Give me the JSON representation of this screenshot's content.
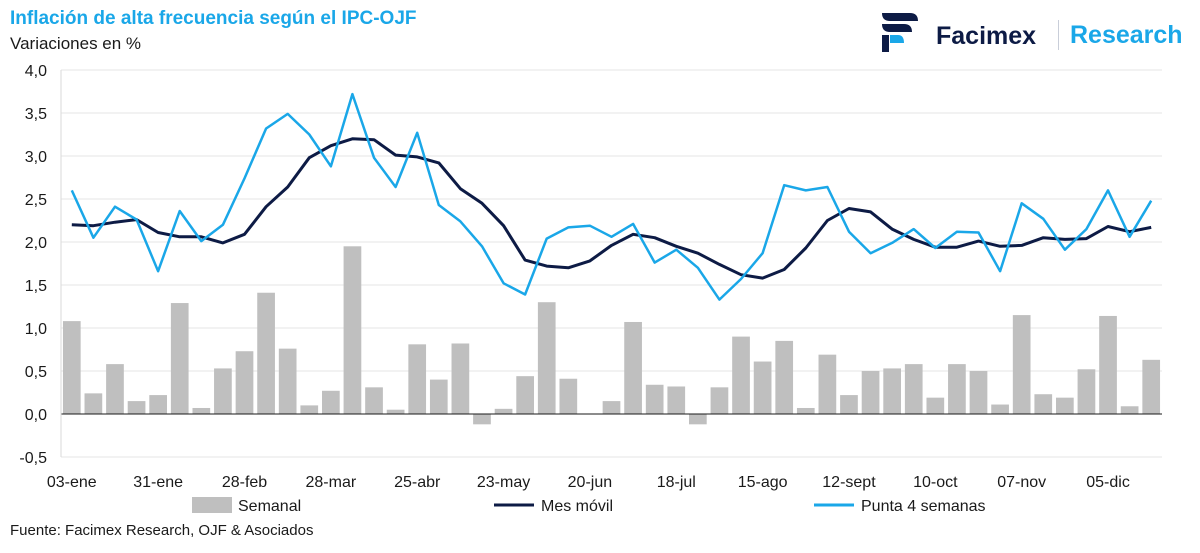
{
  "header": {
    "title": "Inflación de alta frecuencia según el IPC-OJF",
    "subtitle": "Variaciones en %"
  },
  "brand": {
    "logo_icon": "facimex-logo-icon",
    "name": "Facimex",
    "research": "Research"
  },
  "footer": {
    "source": "Fuente: Facimex Research, OJF & Asociados"
  },
  "colors": {
    "semanal": "#bfbfbf",
    "mes_movil": "#0d1b45",
    "punta": "#1aa7e8"
  },
  "chart_data": {
    "type": "bar-line",
    "title": "Inflación de alta frecuencia según el IPC-OJF",
    "ylabel": "Variaciones en %",
    "ylim": [
      -0.5,
      4.0
    ],
    "yticks": [
      "4,0",
      "3,5",
      "3,0",
      "2,5",
      "2,0",
      "1,5",
      "1,0",
      "0,5",
      "0,0",
      "-0,5"
    ],
    "ytick_values": [
      4.0,
      3.5,
      3.0,
      2.5,
      2.0,
      1.5,
      1.0,
      0.5,
      0.0,
      -0.5
    ],
    "xtick_labels": [
      "03-ene",
      "31-ene",
      "28-feb",
      "28-mar",
      "25-abr",
      "23-may",
      "20-jun",
      "18-jul",
      "15-ago",
      "12-sept",
      "10-oct",
      "07-nov",
      "05-dic"
    ],
    "xtick_indices": [
      0,
      4,
      8,
      12,
      16,
      20,
      24,
      28,
      32,
      36,
      40,
      44,
      48
    ],
    "n_weeks": 51,
    "legend": [
      "Semanal",
      "Mes móvil",
      "Punta 4 semanas"
    ],
    "series": [
      {
        "name": "Semanal",
        "type": "bar",
        "values": [
          1.08,
          0.24,
          0.58,
          0.15,
          0.22,
          1.29,
          0.07,
          0.53,
          0.73,
          1.41,
          0.76,
          0.1,
          0.27,
          1.95,
          0.31,
          0.05,
          0.81,
          0.4,
          0.82,
          -0.12,
          0.06,
          0.44,
          1.3,
          0.41,
          null,
          0.15,
          1.07,
          0.34,
          0.32,
          -0.12,
          0.31,
          0.9,
          0.61,
          0.85,
          0.07,
          0.69,
          0.22,
          0.5,
          0.53,
          0.58,
          0.19,
          0.58,
          0.5,
          0.11,
          1.15,
          0.23,
          0.19,
          0.52,
          1.14,
          0.09,
          0.63
        ]
      },
      {
        "name": "Mes móvil",
        "type": "line",
        "values": [
          2.2,
          2.19,
          2.23,
          2.26,
          2.11,
          2.06,
          2.06,
          1.99,
          2.09,
          2.41,
          2.64,
          2.98,
          3.12,
          3.2,
          3.19,
          3.01,
          2.99,
          2.92,
          2.62,
          2.45,
          2.19,
          1.79,
          1.72,
          1.7,
          1.78,
          1.96,
          2.09,
          2.05,
          1.95,
          1.87,
          1.74,
          1.62,
          1.58,
          1.68,
          1.93,
          2.25,
          2.39,
          2.35,
          2.15,
          2.03,
          1.94,
          1.94,
          2.01,
          1.95,
          1.96,
          2.05,
          2.03,
          2.04,
          2.18,
          2.12,
          2.17
        ]
      },
      {
        "name": "Punta 4 semanas",
        "type": "line",
        "values": [
          2.6,
          2.05,
          2.41,
          2.26,
          1.66,
          2.36,
          2.01,
          2.2,
          2.74,
          3.32,
          3.49,
          3.25,
          2.88,
          3.72,
          2.98,
          2.64,
          3.27,
          2.43,
          2.24,
          1.95,
          1.52,
          1.39,
          2.04,
          2.17,
          2.19,
          2.06,
          2.21,
          1.76,
          1.91,
          1.7,
          1.33,
          1.57,
          1.87,
          2.66,
          2.6,
          2.64,
          2.12,
          1.87,
          1.99,
          2.15,
          1.93,
          2.12,
          2.11,
          1.66,
          2.45,
          2.27,
          1.91,
          2.15,
          2.6,
          2.06,
          2.48
        ]
      }
    ]
  }
}
